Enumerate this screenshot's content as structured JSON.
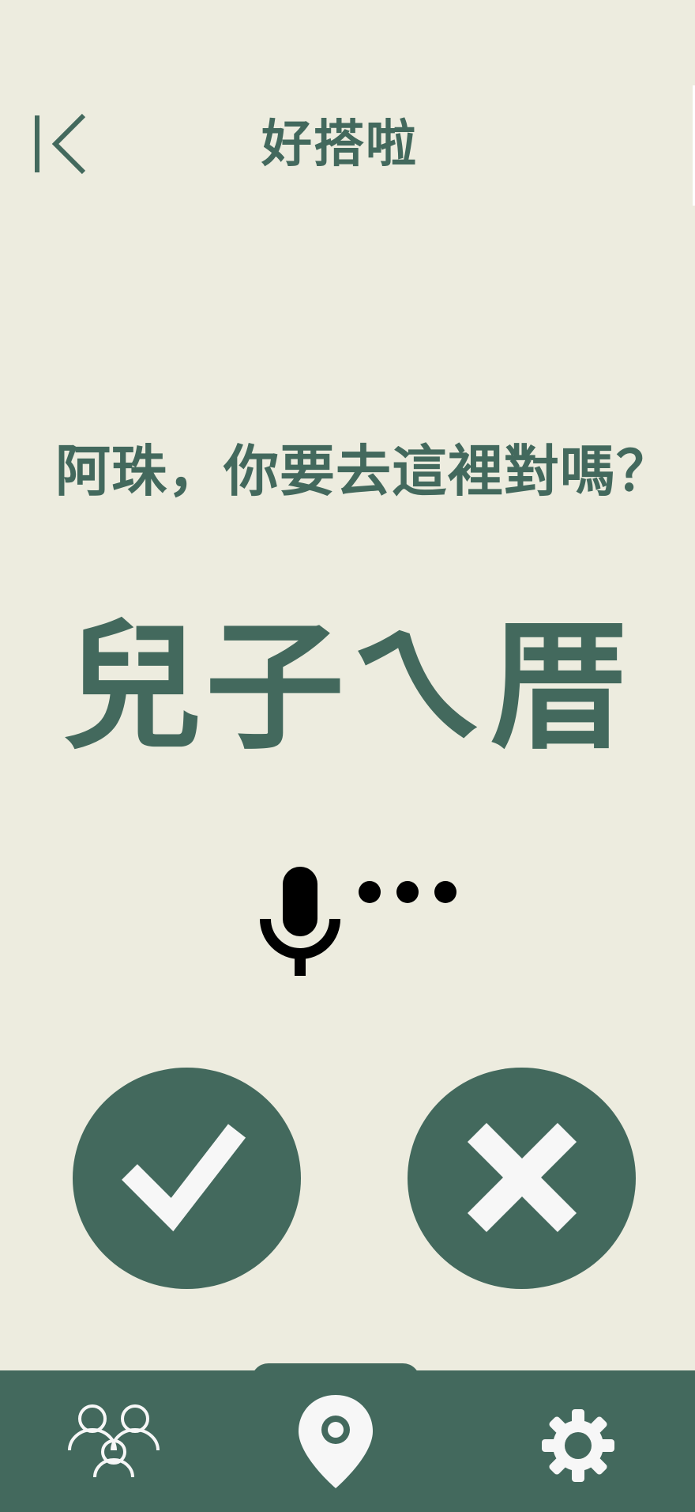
{
  "header": {
    "title": "好搭啦",
    "back_icon": "back-arrow-icon"
  },
  "prompt": {
    "question": "阿珠，你要去這裡對嗎？",
    "destination": "兒子ㄟ厝"
  },
  "voice": {
    "icon": "microphone-icon",
    "indicator": "listening-dots-icon"
  },
  "actions": {
    "confirm_icon": "checkmark-icon",
    "cancel_icon": "close-icon"
  },
  "bottom_nav": {
    "items": [
      {
        "icon": "people-icon"
      },
      {
        "icon": "location-pin-icon"
      },
      {
        "icon": "gear-icon"
      }
    ]
  },
  "colors": {
    "background": "#EDECDF",
    "primary": "#43695D",
    "icon_light": "#F7F7F7",
    "mic": "#000000"
  }
}
